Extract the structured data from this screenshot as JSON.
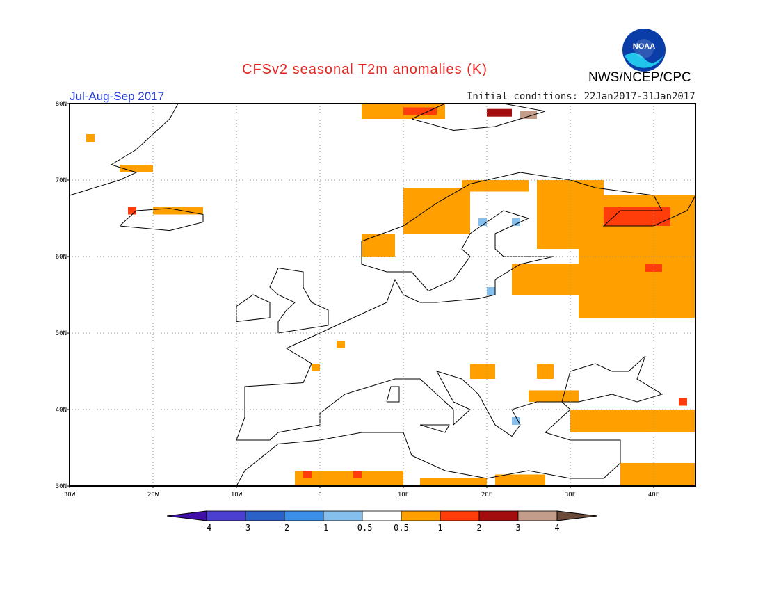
{
  "header": {
    "title": "CFSv2 seasonal T2m anomalies (K)",
    "agency": "NWS/NCEP/CPC",
    "season": "Jul-Aug-Sep 2017",
    "initial_conditions": "Initial conditions: 22Jan2017-31Jan2017",
    "logo_text": "NOAA"
  },
  "map": {
    "lat_labels": [
      "80N",
      "70N",
      "60N",
      "50N",
      "40N",
      "30N"
    ],
    "lon_labels": [
      "30W",
      "20W",
      "10W",
      "0",
      "10E",
      "20E",
      "30E",
      "40E"
    ],
    "extent": {
      "lon_min": -30,
      "lon_max": 45,
      "lat_min": 30,
      "lat_max": 80
    },
    "gridlines": true,
    "anomaly_cells": [
      {
        "lon": 5,
        "lat": 78,
        "w": 10,
        "h": 2,
        "cat": "1"
      },
      {
        "lon": 10,
        "lat": 78.5,
        "w": 4,
        "h": 1,
        "cat": "2"
      },
      {
        "lon": 20,
        "lat": 78.3,
        "w": 3,
        "h": 1,
        "cat": "3"
      },
      {
        "lon": 24,
        "lat": 78,
        "w": 2,
        "h": 1,
        "cat": "4"
      },
      {
        "lon": 17,
        "lat": 68.5,
        "w": 8,
        "h": 1.5,
        "cat": "1"
      },
      {
        "lon": 10,
        "lat": 63,
        "w": 8,
        "h": 6,
        "cat": "1"
      },
      {
        "lon": 5,
        "lat": 60,
        "w": 4,
        "h": 3,
        "cat": "1"
      },
      {
        "lon": 26,
        "lat": 61,
        "w": 8,
        "h": 9,
        "cat": "1"
      },
      {
        "lon": 31,
        "lat": 52,
        "w": 14,
        "h": 16,
        "cat": "1"
      },
      {
        "lon": 23,
        "lat": 55,
        "w": 8,
        "h": 4,
        "cat": "1"
      },
      {
        "lon": 34,
        "lat": 64,
        "w": 8,
        "h": 2.5,
        "cat": "2"
      },
      {
        "lon": 39,
        "lat": 58,
        "w": 2,
        "h": 1,
        "cat": "2"
      },
      {
        "lon": 30,
        "lat": 37,
        "w": 15,
        "h": 3,
        "cat": "1"
      },
      {
        "lon": 25,
        "lat": 41,
        "w": 6,
        "h": 1.5,
        "cat": "1"
      },
      {
        "lon": 18,
        "lat": 44,
        "w": 3,
        "h": 2,
        "cat": "1"
      },
      {
        "lon": 26,
        "lat": 44,
        "w": 2,
        "h": 2,
        "cat": "1"
      },
      {
        "lon": -3,
        "lat": 30,
        "w": 13,
        "h": 2,
        "cat": "1"
      },
      {
        "lon": 12,
        "lat": 30,
        "w": 8,
        "h": 1,
        "cat": "1"
      },
      {
        "lon": 21,
        "lat": 30,
        "w": 6,
        "h": 1.5,
        "cat": "1"
      },
      {
        "lon": 36,
        "lat": 30,
        "w": 9,
        "h": 3,
        "cat": "1"
      },
      {
        "lon": -20,
        "lat": 65.5,
        "w": 6,
        "h": 1,
        "cat": "1"
      },
      {
        "lon": -24,
        "lat": 71,
        "w": 4,
        "h": 1,
        "cat": "1"
      },
      {
        "lon": -28,
        "lat": 75,
        "w": 1,
        "h": 1,
        "cat": "1"
      },
      {
        "lon": -23,
        "lat": 65.5,
        "w": 1,
        "h": 1,
        "cat": "2"
      },
      {
        "lon": -2,
        "lat": 31,
        "w": 1,
        "h": 1,
        "cat": "2"
      },
      {
        "lon": 4,
        "lat": 31,
        "w": 1,
        "h": 1,
        "cat": "2"
      },
      {
        "lon": 43,
        "lat": 40.5,
        "w": 1,
        "h": 1,
        "cat": "2"
      },
      {
        "lon": 2,
        "lat": 48,
        "w": 1,
        "h": 1,
        "cat": "1"
      },
      {
        "lon": -1,
        "lat": 45,
        "w": 1,
        "h": 1,
        "cat": "1"
      },
      {
        "lon": 19,
        "lat": 64,
        "w": 1,
        "h": 1,
        "cat": "-0.5"
      },
      {
        "lon": 23,
        "lat": 64,
        "w": 1,
        "h": 1,
        "cat": "-0.5"
      },
      {
        "lon": 20,
        "lat": 55,
        "w": 1,
        "h": 1,
        "cat": "-0.5"
      },
      {
        "lon": 23,
        "lat": 38,
        "w": 1,
        "h": 1,
        "cat": "-0.5"
      }
    ]
  },
  "colorbar": {
    "tick_labels": [
      "-4",
      "-3",
      "-2",
      "-1",
      "-0.5",
      "0.5",
      "1",
      "2",
      "3",
      "4"
    ],
    "colors": [
      "#3f0fa8",
      "#4a3fd0",
      "#2a62c8",
      "#3b8fe6",
      "#84bfee",
      "#ffffff",
      "#ff9f00",
      "#ff3d0a",
      "#a30d0d",
      "#c49c8a",
      "#6b4a3a"
    ]
  }
}
